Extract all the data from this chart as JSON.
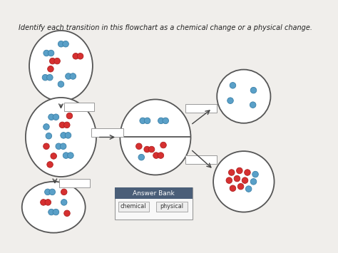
{
  "title": "Identify each transition in this flowchart as a chemical change or a physical change.",
  "title_fontsize": 7.0,
  "bg_color": "#f0eeeb",
  "border_color": "#555555",
  "ellipse_lw": 1.3,
  "arrow_color": "#444444",
  "box_color": "#ffffff",
  "box_edge": "#999999",
  "answer_bank_header_color": "#4a5e78",
  "answer_bank_text_color": "#ffffff",
  "answer_bank_btn_color": "#eeeeee",
  "answer_bank_btn_edge": "#aaaaaa",
  "red_atom": "#d63030",
  "blue_atom": "#5aa0c8",
  "red_atom_edge": "#b02020",
  "blue_atom_edge": "#3a80a8"
}
